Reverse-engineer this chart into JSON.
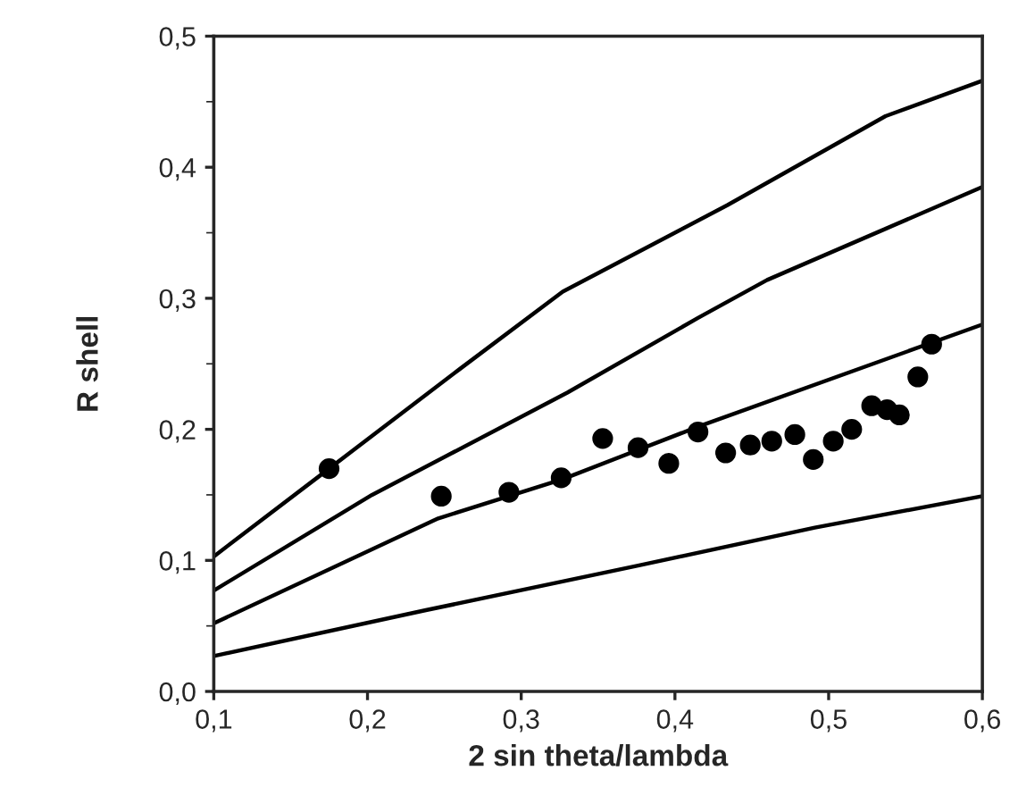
{
  "chart_data": {
    "type": "scatter",
    "xlabel": "2 sin theta/lambda",
    "ylabel": "R shell",
    "xlim": [
      0.1,
      0.6
    ],
    "ylim": [
      0.0,
      0.5
    ],
    "xticks": [
      {
        "value": 0.1,
        "label": "0,1"
      },
      {
        "value": 0.2,
        "label": "0,2"
      },
      {
        "value": 0.3,
        "label": "0,3"
      },
      {
        "value": 0.4,
        "label": "0,4"
      },
      {
        "value": 0.5,
        "label": "0,5"
      },
      {
        "value": 0.6,
        "label": "0,6"
      }
    ],
    "yticks": [
      {
        "value": 0.0,
        "label": "0,0"
      },
      {
        "value": 0.1,
        "label": "0,1"
      },
      {
        "value": 0.2,
        "label": "0,2"
      },
      {
        "value": 0.3,
        "label": "0,3"
      },
      {
        "value": 0.4,
        "label": "0,4"
      },
      {
        "value": 0.5,
        "label": "0,5"
      }
    ],
    "grid": false,
    "legend": false,
    "series": [
      {
        "type": "line",
        "color": "#000000",
        "line_style": "solid",
        "marker": "none",
        "x": [
          0.1,
          0.175,
          0.26,
          0.327,
          0.434,
          0.537,
          0.6
        ],
        "values": [
          0.103,
          0.17,
          0.246,
          0.305,
          0.371,
          0.439,
          0.466
        ]
      },
      {
        "type": "line",
        "color": "#000000",
        "line_style": "solid",
        "marker": "none",
        "x": [
          0.1,
          0.203,
          0.33,
          0.415,
          0.46,
          0.537,
          0.6
        ],
        "values": [
          0.077,
          0.15,
          0.228,
          0.285,
          0.314,
          0.353,
          0.385
        ]
      },
      {
        "type": "line",
        "color": "#000000",
        "line_style": "solid",
        "marker": "none",
        "x": [
          0.1,
          0.246,
          0.327,
          0.415,
          0.6
        ],
        "values": [
          0.052,
          0.132,
          0.162,
          0.202,
          0.28
        ]
      },
      {
        "type": "line",
        "color": "#000000",
        "line_style": "solid",
        "marker": "none",
        "x": [
          0.1,
          0.238,
          0.376,
          0.491,
          0.6
        ],
        "values": [
          0.027,
          0.062,
          0.096,
          0.125,
          0.149
        ]
      },
      {
        "color": "#000000",
        "marker": "circle",
        "x": [
          0.175,
          0.248,
          0.292,
          0.326,
          0.353,
          0.376,
          0.396,
          0.415,
          0.433,
          0.449,
          0.463,
          0.478,
          0.49,
          0.503,
          0.515,
          0.528,
          0.538,
          0.546,
          0.558,
          0.567
        ],
        "values": [
          0.17,
          0.149,
          0.152,
          0.163,
          0.193,
          0.186,
          0.174,
          0.198,
          0.182,
          0.188,
          0.191,
          0.196,
          0.177,
          0.191,
          0.2,
          0.218,
          0.215,
          0.211,
          0.24,
          0.265
        ]
      }
    ]
  }
}
